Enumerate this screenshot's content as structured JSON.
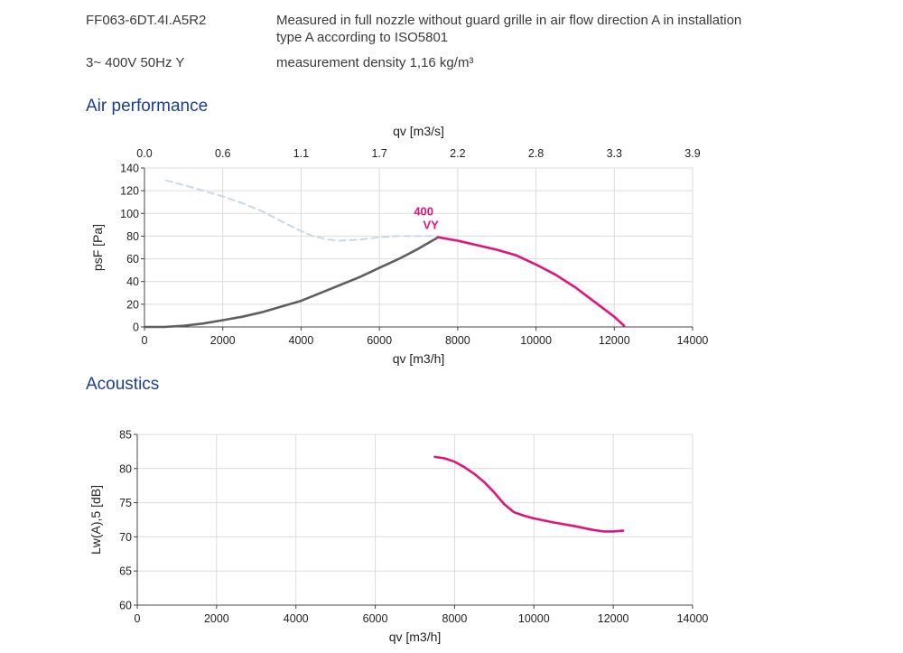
{
  "header": {
    "model": "FF063-6DT.4I.A5R2",
    "measure_line1": "Measured in full nozzle without guard grille in air flow direction A in installation",
    "measure_line2": "type A according to ISO5801",
    "voltage": "3~ 400V 50Hz Y",
    "density": "measurement density 1,16 kg/m³"
  },
  "sections": {
    "air": "Air performance",
    "acoustics": "Acoustics"
  },
  "colors": {
    "accent": "#e0147a",
    "curve_gray": "#5f5f5f",
    "curve_dashed": "#c9d8e6",
    "grid": "#dcdcdc",
    "title_blue": "#1a3f8f"
  },
  "chart_data": [
    {
      "type": "line",
      "title": "Air performance",
      "xlabel": "qv [m3/h]",
      "x2label": "qv [m3/s]",
      "ylabel": "psF [Pa]",
      "xlim": [
        0,
        14000
      ],
      "ylim": [
        0,
        140
      ],
      "xticks": [
        "0",
        "2000",
        "4000",
        "6000",
        "8000",
        "10000",
        "12000",
        "14000"
      ],
      "yticks": [
        "0",
        "20",
        "40",
        "60",
        "80",
        "100",
        "120",
        "140"
      ],
      "x2ticks": [
        "0.0",
        "0.6",
        "1.1",
        "1.7",
        "2.2",
        "2.8",
        "3.3",
        "3.9"
      ],
      "grid": true,
      "curve_label": [
        "400",
        "VY"
      ],
      "series": [
        {
          "style": "dashed",
          "x": [
            550,
            1000,
            1500,
            2000,
            2500,
            3000,
            3500,
            3900,
            4300,
            4700,
            5000,
            5500,
            6000,
            6500,
            7000,
            7500
          ],
          "y": [
            129,
            125,
            120,
            115,
            109,
            102,
            93,
            86,
            80,
            77,
            76,
            77,
            79,
            80,
            80,
            80
          ]
        },
        {
          "style": "solid-gray",
          "x": [
            0,
            500,
            1000,
            1500,
            2000,
            2500,
            3000,
            3500,
            4000,
            4500,
            5000,
            5500,
            6000,
            6500,
            7000,
            7500
          ],
          "y": [
            0,
            0,
            1,
            3,
            6,
            9,
            13,
            18,
            23,
            30,
            37,
            44,
            52,
            60,
            69,
            79
          ]
        },
        {
          "style": "solid-accent",
          "x": [
            7500,
            8000,
            8500,
            9000,
            9500,
            10000,
            10500,
            11000,
            11500,
            12000,
            12250
          ],
          "y": [
            79,
            76,
            72,
            68,
            63,
            55,
            46,
            35,
            22,
            9,
            1
          ]
        }
      ]
    },
    {
      "type": "line",
      "title": "Acoustics",
      "xlabel": "qv [m3/h]",
      "ylabel": "Lw(A),5 [dB]",
      "xlim": [
        0,
        14000
      ],
      "ylim": [
        60,
        85
      ],
      "xticks": [
        "0",
        "2000",
        "4000",
        "6000",
        "8000",
        "10000",
        "12000",
        "14000"
      ],
      "yticks": [
        "60",
        "65",
        "70",
        "75",
        "80",
        "85"
      ],
      "grid": true,
      "series": [
        {
          "style": "solid-accent",
          "x": [
            7500,
            7750,
            8000,
            8250,
            8500,
            8750,
            9000,
            9250,
            9500,
            9750,
            10000,
            10500,
            11000,
            11500,
            11750,
            12000,
            12250
          ],
          "y": [
            81.7,
            81.5,
            81.0,
            80.2,
            79.2,
            78.0,
            76.5,
            74.8,
            73.6,
            73.1,
            72.7,
            72.1,
            71.6,
            71.0,
            70.8,
            70.8,
            70.9
          ]
        }
      ]
    }
  ]
}
